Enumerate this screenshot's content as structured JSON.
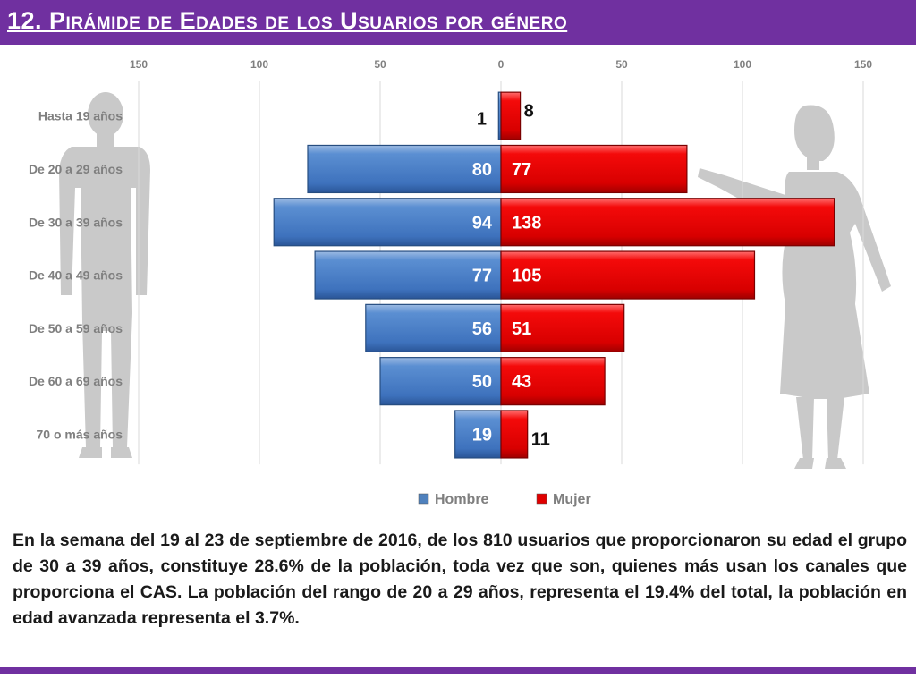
{
  "slide": {
    "title": "12. Pirámide de Edades de los Usuarios por género",
    "summary": "En la semana del 19 al 23 de septiembre de 2016, de los 810 usuarios  que proporcionaron su edad el grupo de 30 a 39 años,  constituye 28.6% de la población, toda vez que son, quienes más usan los canales que proporciona el CAS. La población del rango de 20 a 29 años, representa el 19.4% del total, la población en edad avanzada representa el 3.7%.",
    "accent_color": "#7030a0"
  },
  "chart_data": {
    "type": "bar",
    "orientation": "horizontal",
    "categories": [
      "Hasta 19 años",
      "De 20 a 29 años",
      "De 30 a 39 años",
      "De 40 a 49 años",
      "De 50 a 59 años",
      "De 60 a 69 años",
      "70 o más años"
    ],
    "series": [
      {
        "name": "Hombre",
        "values": [
          1,
          80,
          94,
          77,
          56,
          50,
          19
        ],
        "color": "#4f81bd",
        "side": "left"
      },
      {
        "name": "Mujer",
        "values": [
          8,
          77,
          138,
          105,
          51,
          43,
          11
        ],
        "color": "#e00000",
        "side": "right"
      }
    ],
    "xlim": [
      -150,
      150
    ],
    "x_ticks": [
      -150,
      -100,
      -50,
      0,
      50,
      100,
      150
    ],
    "x_tick_labels": [
      "150",
      "100",
      "50",
      "0",
      "50",
      "100",
      "150"
    ],
    "gridlines": true,
    "legend_position": "bottom"
  }
}
